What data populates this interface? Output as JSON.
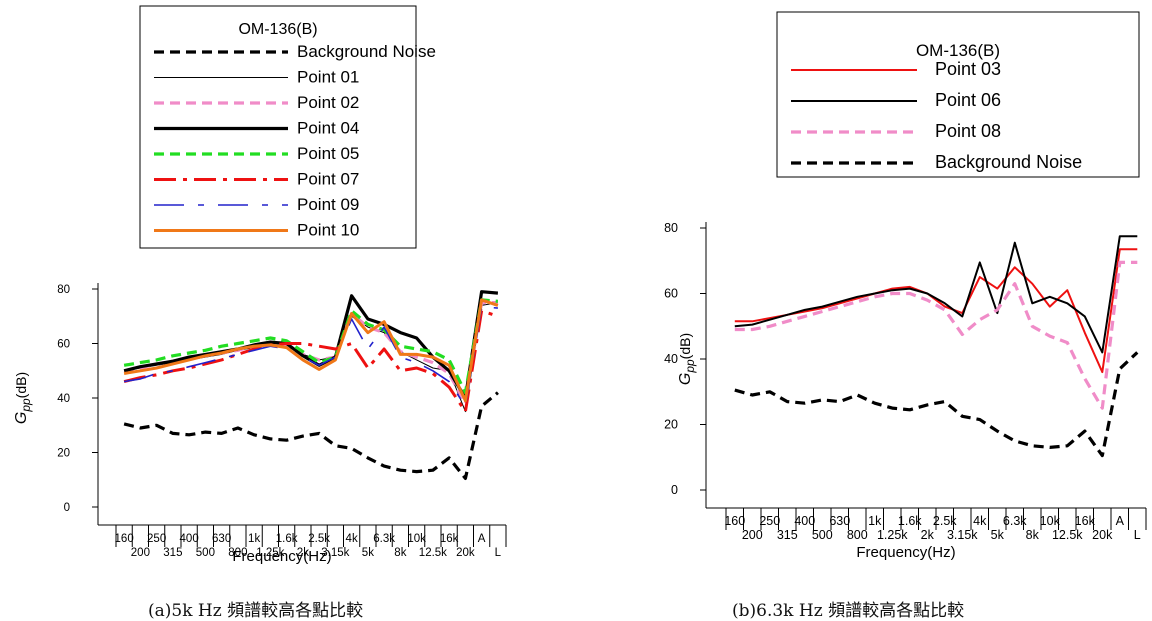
{
  "captions": {
    "a": "(a)5k Hz 頻譜較高各點比較",
    "b": "(b)6.3k Hz 頻譜較高各點比較"
  },
  "chart_data": [
    {
      "id": "a",
      "type": "line",
      "ylabel_main": "G",
      "ylabel_sub": "pp",
      "ylabel_unit": "(dB)",
      "xlabel": "Frequency(Hz)",
      "ylim": [
        0,
        80
      ],
      "yticks": [
        0,
        20,
        40,
        60,
        80
      ],
      "grid": false,
      "legend_position": "top",
      "legend_title": "OM-136(B)",
      "categories": [
        "160",
        "200",
        "250",
        "315",
        "400",
        "500",
        "630",
        "800",
        "1k",
        "1.25k",
        "1.6k",
        "2k",
        "2.5k",
        "3.15k",
        "4k",
        "5k",
        "6.3k",
        "8k",
        "10k",
        "12.5k",
        "16k",
        "20k",
        "A",
        "L"
      ],
      "tick_labels_top": [
        "160",
        "250",
        "400",
        "630",
        "1k",
        "1.6k",
        "2.5k",
        "4k",
        "6.3k",
        "10k",
        "16k",
        "A"
      ],
      "tick_labels_bottom": [
        "200",
        "315",
        "500",
        "800",
        "1.25k",
        "2k",
        "3.15k",
        "5k",
        "8k",
        "12.5k",
        "20k",
        "L"
      ],
      "series": [
        {
          "name": "Background Noise",
          "color": "#000000",
          "style": "dash",
          "values": [
            30.5,
            29,
            30,
            27,
            26.5,
            27.5,
            27,
            29,
            26.5,
            25,
            24.5,
            26,
            27,
            22.5,
            21.5,
            18,
            15,
            13.5,
            13,
            13.5,
            18,
            10.5,
            37,
            42
          ]
        },
        {
          "name": "Point 01",
          "color": "#000000",
          "style": "thin",
          "values": [
            50,
            51,
            52,
            53,
            54,
            55,
            56,
            57.5,
            58.5,
            59.5,
            59,
            56,
            54,
            55,
            70,
            66,
            64,
            57,
            54,
            51,
            50,
            35,
            74,
            75
          ]
        },
        {
          "name": "Point 02",
          "color": "#f08cc8",
          "style": "dash",
          "values": [
            50,
            51,
            52.5,
            53.5,
            54.5,
            55.5,
            56.5,
            57.5,
            59,
            60,
            59.5,
            56,
            54,
            55,
            71,
            66,
            64,
            57,
            55,
            53,
            49,
            38,
            75,
            75
          ]
        },
        {
          "name": "Point 04",
          "color": "#000000",
          "style": "thick",
          "values": [
            50,
            51.5,
            52.5,
            53.5,
            55,
            56,
            57,
            58,
            59.5,
            60.5,
            60,
            55.5,
            52,
            55,
            77.5,
            69,
            67,
            64,
            62,
            55,
            50,
            40,
            79,
            78.5
          ]
        },
        {
          "name": "Point 05",
          "color": "#22dd22",
          "style": "dash",
          "values": [
            52,
            53,
            54,
            55.5,
            56.5,
            57.5,
            59,
            60,
            61,
            62,
            61,
            57,
            53,
            55,
            72,
            67,
            65,
            59,
            58,
            57,
            54,
            42,
            76,
            75.5
          ]
        },
        {
          "name": "Point 07",
          "color": "#ee1111",
          "style": "dashdot",
          "values": [
            46,
            47.5,
            48.5,
            50,
            51,
            52.5,
            54,
            56,
            58,
            59.5,
            60,
            60,
            59,
            58,
            60,
            51,
            58,
            50,
            51,
            49,
            44,
            35,
            72,
            70
          ]
        },
        {
          "name": "Point 09",
          "color": "#2222cc",
          "style": "longdash",
          "values": [
            46,
            47,
            49,
            50,
            51.5,
            53,
            54.5,
            56,
            57.5,
            59,
            58,
            55,
            52,
            55,
            69,
            58,
            66,
            55,
            53,
            50,
            46,
            37,
            73.5,
            73
          ]
        },
        {
          "name": "Point 10",
          "color": "#f07818",
          "style": "orange",
          "values": [
            49,
            50,
            51,
            52.5,
            54,
            55.5,
            56.5,
            58,
            59,
            59.5,
            58.5,
            54,
            50.5,
            54,
            71,
            64,
            68,
            56,
            56,
            55,
            52,
            39,
            76,
            74
          ]
        }
      ]
    },
    {
      "id": "b",
      "type": "line",
      "ylabel_main": "G",
      "ylabel_sub": "pp",
      "ylabel_unit": "(dB)",
      "xlabel": "Frequency(Hz)",
      "ylim": [
        0,
        80
      ],
      "yticks": [
        0,
        20,
        40,
        60,
        80
      ],
      "grid": false,
      "legend_position": "top-right",
      "legend_title": "OM-136(B)",
      "categories": [
        "160",
        "200",
        "250",
        "315",
        "400",
        "500",
        "630",
        "800",
        "1k",
        "1.25k",
        "1.6k",
        "2k",
        "2.5k",
        "3.15k",
        "4k",
        "5k",
        "6.3k",
        "8k",
        "10k",
        "12.5k",
        "16k",
        "20k",
        "A",
        "L"
      ],
      "tick_labels_top": [
        "160",
        "250",
        "400",
        "630",
        "1k",
        "1.6k",
        "2.5k",
        "4k",
        "6.3k",
        "10k",
        "16k",
        "A"
      ],
      "tick_labels_bottom": [
        "200",
        "315",
        "500",
        "800",
        "1.25k",
        "2k",
        "3.15k",
        "5k",
        "8k",
        "12.5k",
        "20k",
        "L"
      ],
      "series": [
        {
          "name": "Point 03",
          "color": "#ee1111",
          "style": "solid",
          "values": [
            51.5,
            51.5,
            52.5,
            53.5,
            54.5,
            55.5,
            57,
            58.5,
            60,
            61.5,
            62,
            60,
            56,
            54,
            65,
            61.5,
            68,
            63,
            56,
            61,
            48,
            36,
            73.5,
            73.5
          ]
        },
        {
          "name": "Point 06",
          "color": "#000000",
          "style": "solid",
          "values": [
            50,
            50.5,
            52,
            53.5,
            55,
            56,
            57.5,
            59,
            60,
            61,
            61.5,
            60,
            57,
            53,
            69.5,
            54,
            75.5,
            57,
            59,
            57,
            53,
            42,
            77.5,
            77.5
          ]
        },
        {
          "name": "Point 08",
          "color": "#f08cc8",
          "style": "dash",
          "values": [
            49,
            49,
            50,
            51.5,
            53,
            54.5,
            56,
            57.5,
            59,
            60,
            60,
            58,
            55,
            47.5,
            52,
            55,
            63,
            50,
            47,
            45,
            34,
            25,
            69.5,
            69.5
          ]
        },
        {
          "name": "Background Noise",
          "color": "#000000",
          "style": "dash",
          "values": [
            30.5,
            29,
            30,
            27,
            26.5,
            27.5,
            27,
            29,
            26.5,
            25,
            24.5,
            26,
            27,
            22.5,
            21.5,
            18,
            15,
            13.5,
            13,
            13.5,
            18,
            10.5,
            37,
            42
          ]
        }
      ]
    }
  ]
}
